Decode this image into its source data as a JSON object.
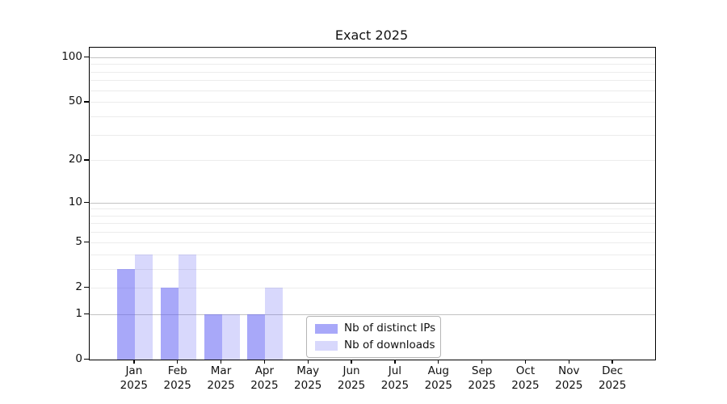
{
  "title": "Exact 2025",
  "chart_data": {
    "type": "bar",
    "title": "Exact 2025",
    "x_categories": [
      "Jan",
      "Feb",
      "Mar",
      "Apr",
      "May",
      "Jun",
      "Jul",
      "Aug",
      "Sep",
      "Oct",
      "Nov",
      "Dec"
    ],
    "x_sub_label": "2025",
    "series": [
      {
        "name": "Nb of distinct IPs",
        "fill": "rgba(90,90,243,0.53)",
        "color_hex": "#a9a9f5",
        "values": [
          3,
          2,
          1,
          1,
          0,
          0,
          0,
          0,
          0,
          0,
          0,
          0
        ]
      },
      {
        "name": "Nb of downloads",
        "fill": "rgba(90,90,243,0.24)",
        "color_hex": "#d8d8f8",
        "values": [
          4,
          4,
          1,
          2,
          0,
          0,
          0,
          0,
          0,
          0,
          0,
          0
        ]
      }
    ],
    "y_axis": {
      "tick_labels": [
        0,
        1,
        2,
        5,
        10,
        20,
        50,
        100
      ],
      "scale": "log10(value+1)",
      "top_value": 116,
      "major_grid_values": [
        1,
        10,
        100
      ],
      "minor_grid_values": [
        2,
        3,
        4,
        5,
        6,
        7,
        8,
        9,
        20,
        30,
        40,
        50,
        60,
        70,
        80,
        90
      ],
      "major_grid_color": "#c3c3c3",
      "minor_grid_color": "#ececec"
    },
    "xlabel": "",
    "ylabel": "",
    "grid": "on",
    "legend_position": "lower center",
    "legend_items": [
      "Nb of distinct IPs",
      "Nb of downloads"
    ]
  }
}
